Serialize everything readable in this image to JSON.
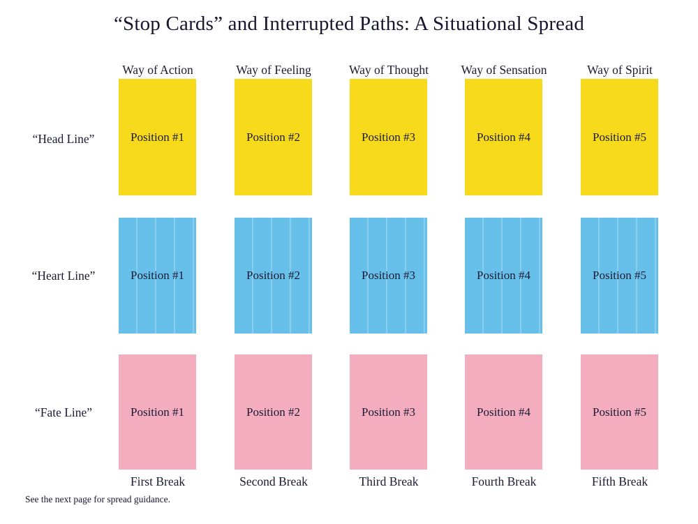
{
  "title": "“Stop Cards” and Interrupted Paths: A Situational Spread",
  "footer": "See the next page for spread guidance.",
  "columns": [
    {
      "header": "Way of Action",
      "break_label": "First Break"
    },
    {
      "header": "Way of Feeling",
      "break_label": "Second Break"
    },
    {
      "header": "Way of Thought",
      "break_label": "Third Break"
    },
    {
      "header": "Way of Sensation",
      "break_label": "Fourth Break"
    },
    {
      "header": "Way of Spirit",
      "break_label": "Fifth Break"
    }
  ],
  "rows": [
    {
      "label": "“Head Line”",
      "color": "#f7da1c",
      "cards": [
        "Position #1",
        "Position #2",
        "Position #3",
        "Position #4",
        "Position #5"
      ]
    },
    {
      "label": "“Heart Line”",
      "color": "#67c0ea",
      "cards": [
        "Position #1",
        "Position #2",
        "Position #3",
        "Position #4",
        "Position #5"
      ]
    },
    {
      "label": "“Fate Line”",
      "color": "#f3adbe",
      "cards": [
        "Position #1",
        "Position #2",
        "Position #3",
        "Position #4",
        "Position #5"
      ]
    }
  ],
  "colors": {
    "card_yellow": "#f7da1c",
    "card_blue": "#67c0ea",
    "card_pink": "#f3adbe",
    "text": "#1b1b33",
    "background": "#ffffff"
  }
}
